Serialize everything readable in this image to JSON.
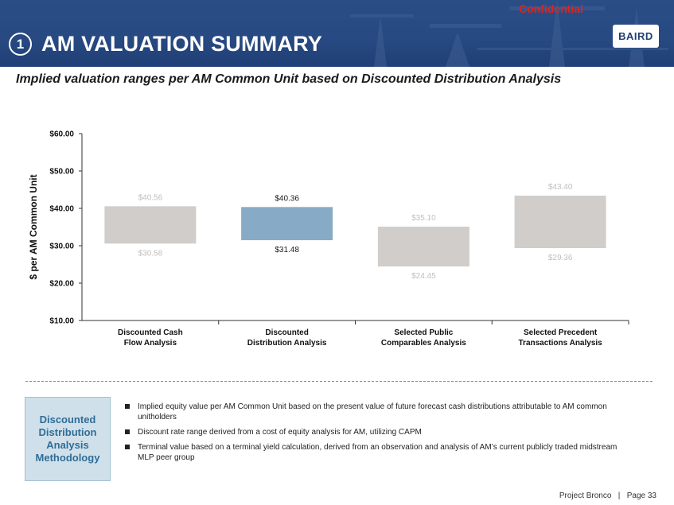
{
  "header": {
    "section_number": "1",
    "title": "AM VALUATION SUMMARY",
    "confidential": "Confidential",
    "logo_text": "BAIRD"
  },
  "subtitle": "Implied valuation ranges per AM Common Unit based on Discounted Distribution Analysis",
  "chart_data": {
    "type": "bar",
    "subtype": "floating-range",
    "ylabel": "$ per AM Common Unit",
    "ylim": [
      10,
      60
    ],
    "yticks": [
      "$10.00",
      "$20.00",
      "$30.00",
      "$40.00",
      "$50.00",
      "$60.00"
    ],
    "ytick_values": [
      10,
      20,
      30,
      40,
      50,
      60
    ],
    "grid": false,
    "categories": [
      [
        "Discounted Cash",
        "Flow Analysis"
      ],
      [
        "Discounted",
        "Distribution Analysis"
      ],
      [
        "Selected Public",
        "Comparables Analysis"
      ],
      [
        "Selected Precedent",
        "Transactions Analysis"
      ]
    ],
    "ranges": [
      {
        "low": 30.58,
        "high": 40.56,
        "low_label": "$30.58",
        "high_label": "$40.56",
        "color": "#d0cdcb",
        "label_color": "#c2bfbd"
      },
      {
        "low": 31.48,
        "high": 40.36,
        "low_label": "$31.48",
        "high_label": "$40.36",
        "color": "#87abc6",
        "label_color": "#1a1a1a"
      },
      {
        "low": 24.45,
        "high": 35.1,
        "low_label": "$24.45",
        "high_label": "$35.10",
        "color": "#d0cdcb",
        "label_color": "#c2bfbd"
      },
      {
        "low": 29.36,
        "high": 43.4,
        "low_label": "$29.36",
        "high_label": "$43.40",
        "color": "#d0cdcb",
        "label_color": "#c2bfbd"
      }
    ]
  },
  "methodology": {
    "label": "Discounted Distribution Analysis Methodology",
    "bullets": [
      "Implied equity value per AM Common Unit based on the present value of future forecast cash distributions attributable to AM common unitholders",
      "Discount rate range derived from a cost of equity analysis for AM, utilizing CAPM",
      "Terminal value based on a terminal yield calculation, derived from an observation and analysis of AM’s current publicly traded midstream MLP peer group"
    ]
  },
  "footer": {
    "project": "Project Bronco",
    "separator": "|",
    "page": "Page 33"
  },
  "colors": {
    "banner": "#284a82",
    "highlight_bar": "#87abc6",
    "other_bars": "#d0cdcb",
    "confidential": "#e0231a",
    "method_text": "#2f6d97"
  }
}
